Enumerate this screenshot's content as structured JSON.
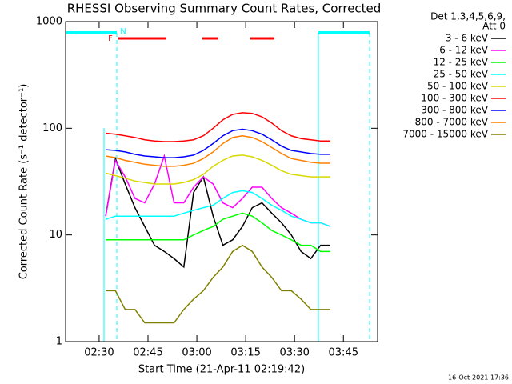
{
  "chart_data": {
    "type": "line",
    "title": "RHESSI Observing Summary Count Rates, Corrected",
    "x_label": "Start Time (21-Apr-11 02:19:42)",
    "y_label": "Corrected Count Rate (s⁻¹ detector⁻¹)",
    "legend_title": [
      "Det 1,3,4,5,6,9,",
      "Att 0"
    ],
    "footnote": "16-Oct-2021 17:36",
    "annotations": [
      "F",
      "N"
    ],
    "log_y": true,
    "xlim": [
      139.7,
      235.5
    ],
    "ylim": [
      1,
      1000
    ],
    "xticks": [
      {
        "value": 150,
        "label": "02:30"
      },
      {
        "value": 165,
        "label": "02:45"
      },
      {
        "value": 180,
        "label": "03:00"
      },
      {
        "value": 195,
        "label": "03:15"
      },
      {
        "value": 210,
        "label": "03:30"
      },
      {
        "value": 225,
        "label": "03:45"
      }
    ],
    "yticks": [
      1,
      10,
      100,
      1000
    ],
    "x": [
      152,
      155,
      158,
      161,
      164,
      167,
      170,
      173,
      176,
      179,
      182,
      185,
      188,
      191,
      194,
      197,
      200,
      203,
      206,
      209,
      212,
      215,
      218,
      221
    ],
    "series": [
      {
        "name": "3 - 6 keV",
        "color": "#000000",
        "values": [
          15,
          52,
          30,
          18,
          12,
          8,
          7,
          6,
          5,
          25,
          35,
          15,
          8,
          9,
          12,
          18,
          20,
          16,
          13,
          10,
          7,
          6,
          8,
          8
        ]
      },
      {
        "name": "6 - 12 keV",
        "color": "#ff00ff",
        "values": [
          15,
          50,
          35,
          22,
          20,
          30,
          55,
          20,
          20,
          28,
          35,
          30,
          20,
          18,
          22,
          28,
          28,
          22,
          18,
          16,
          14,
          13,
          13,
          12
        ]
      },
      {
        "name": "12 - 25 keV",
        "color": "#00ff00",
        "values": [
          9,
          9,
          9,
          9,
          9,
          9,
          9,
          9,
          9,
          10,
          11,
          12,
          14,
          15,
          16,
          15,
          13,
          11,
          10,
          9,
          8,
          8,
          7,
          7
        ]
      },
      {
        "name": "25 - 50 keV",
        "color": "#00ffff",
        "values": [
          14,
          15,
          15,
          15,
          15,
          15,
          15,
          15,
          16,
          17,
          18,
          19,
          22,
          25,
          26,
          25,
          22,
          19,
          17,
          15,
          14,
          13,
          13,
          12
        ]
      },
      {
        "name": "50 - 100 keV",
        "color": "#d8d800",
        "values": [
          38,
          36,
          34,
          32,
          31,
          30,
          30,
          30,
          31,
          33,
          37,
          44,
          50,
          55,
          56,
          54,
          50,
          45,
          40,
          37,
          36,
          35,
          35,
          35
        ]
      },
      {
        "name": "100 - 300 keV",
        "color": "#ff0000",
        "values": [
          90,
          88,
          85,
          82,
          78,
          76,
          75,
          75,
          76,
          78,
          85,
          100,
          120,
          135,
          140,
          138,
          128,
          112,
          95,
          85,
          80,
          78,
          76,
          76
        ]
      },
      {
        "name": "300 - 800 keV",
        "color": "#0000ff",
        "values": [
          63,
          62,
          60,
          57,
          55,
          54,
          53,
          53,
          54,
          56,
          62,
          72,
          85,
          95,
          98,
          95,
          88,
          78,
          68,
          62,
          60,
          58,
          57,
          57
        ]
      },
      {
        "name": "800 - 7000 keV",
        "color": "#ff8000",
        "values": [
          55,
          53,
          50,
          48,
          46,
          45,
          44,
          44,
          45,
          47,
          52,
          60,
          72,
          82,
          85,
          82,
          75,
          66,
          58,
          52,
          50,
          48,
          47,
          47
        ]
      },
      {
        "name": "7000 - 15000 keV",
        "color": "#808000",
        "values": [
          3,
          3,
          2,
          2,
          1.5,
          1.5,
          1.5,
          1.5,
          2,
          2.5,
          3,
          4,
          5,
          7,
          8,
          7,
          5,
          4,
          3,
          3,
          2.5,
          2,
          2,
          2
        ]
      }
    ]
  }
}
